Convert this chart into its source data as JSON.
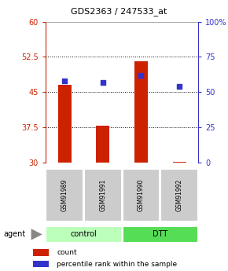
{
  "title": "GDS2363 / 247533_at",
  "samples": [
    "GSM91989",
    "GSM91991",
    "GSM91990",
    "GSM91992"
  ],
  "groups": [
    "control",
    "control",
    "DTT",
    "DTT"
  ],
  "counts": [
    46.5,
    37.8,
    51.5,
    30.25
  ],
  "percentile_ranks": [
    58,
    57,
    62,
    54
  ],
  "ylim_left": [
    30,
    60
  ],
  "ylim_right": [
    0,
    100
  ],
  "yticks_left": [
    30,
    37.5,
    45,
    52.5,
    60
  ],
  "ytick_labels_left": [
    "30",
    "37.5",
    "45",
    "52.5",
    "60"
  ],
  "yticks_right": [
    0,
    25,
    50,
    75,
    100
  ],
  "ytick_labels_right": [
    "0",
    "25",
    "50",
    "75",
    "100%"
  ],
  "bar_color": "#cc2200",
  "dot_color": "#3333cc",
  "bar_width": 0.35,
  "left_axis_color": "#cc2200",
  "right_axis_color": "#3333cc",
  "gridlines_at": [
    37.5,
    45.0,
    52.5
  ],
  "sample_box_color": "#cccccc",
  "control_color": "#bbffbb",
  "dtt_color": "#55dd55",
  "legend_count_label": "count",
  "legend_pct_label": "percentile rank within the sample"
}
